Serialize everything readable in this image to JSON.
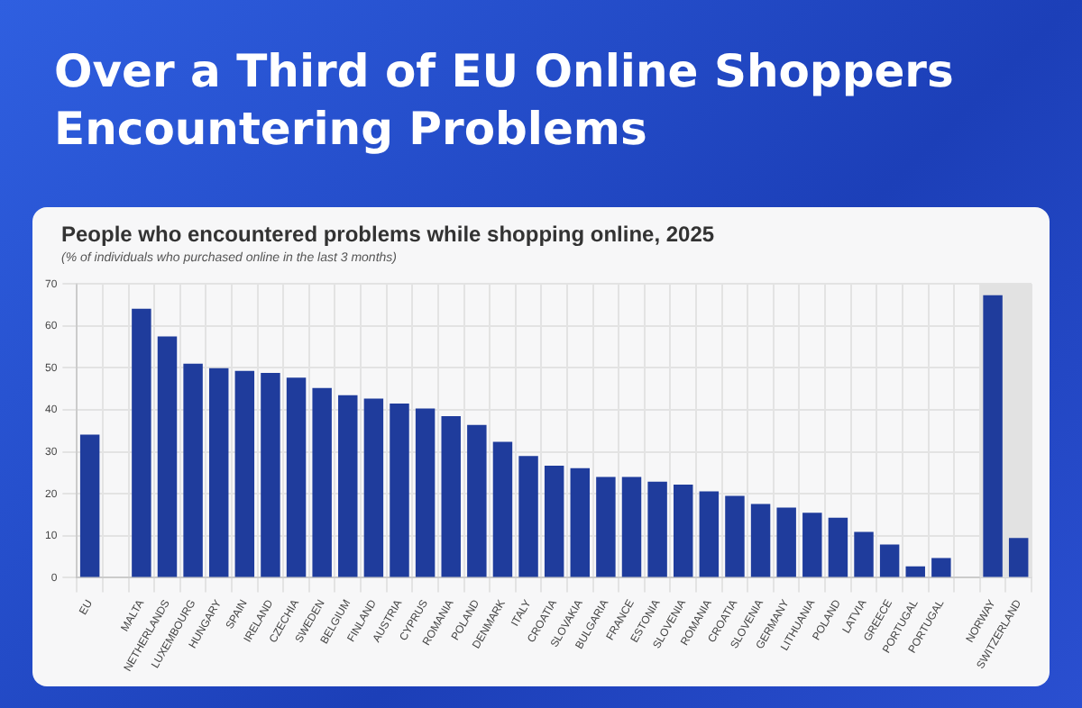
{
  "chart_data": {
    "type": "bar",
    "title": "Over a Third of EU Online Shoppers Encountering Problems",
    "subtitle": "People who encountered problems while shopping online, 2025",
    "annotations": [
      "(% of individuals who purchased online in the last 3 months)"
    ],
    "categories": [
      "EU",
      null,
      "MALTA",
      "NETHERLANDS",
      "LUXEMBOURG",
      "HUNGARY",
      "SPAIN",
      "IRELAND",
      "CZECHIA",
      "SWEDEN",
      "BELGIUM",
      "FINLAND",
      "AUSTRIA",
      "CYPRUS",
      "ROMANIA",
      "POLAND",
      "DENMARK",
      "ITALY",
      "CROATIA",
      "SLOVAKIA",
      "BULGARIA",
      "FRANCE",
      "ESTONIA",
      "SLOVENIA",
      "ROMANIA",
      "CROATIA",
      "SLOVENIA",
      "GERMANY",
      "LITHUANIA",
      "POLAND",
      "LATVIA",
      "GREECE",
      "PORTUGAL",
      "PORTUGAL",
      null,
      "NORWAY",
      "SWITZERLAND"
    ],
    "values": [
      34.1,
      null,
      64.1,
      57.5,
      51,
      49.9,
      49.3,
      48.8,
      47.7,
      45.2,
      43.5,
      42.7,
      41.5,
      40.3,
      38.5,
      36.4,
      32.4,
      29,
      26.7,
      26.1,
      24,
      24,
      22.9,
      22.2,
      20.6,
      19.5,
      17.6,
      16.7,
      15.5,
      14.3,
      10.9,
      7.9,
      2.7,
      4.7,
      null,
      67.3,
      9.5
    ],
    "color": "#1f3c9c",
    "ylim": [
      0,
      70
    ],
    "yticks": [
      0,
      10,
      20,
      30,
      40,
      50,
      60,
      70
    ],
    "grid": true,
    "legend": false,
    "bands": [
      {
        "axis": "x",
        "from": "NORWAY",
        "to": "SWITZERLAND",
        "color": "#e2e2e2"
      }
    ]
  }
}
